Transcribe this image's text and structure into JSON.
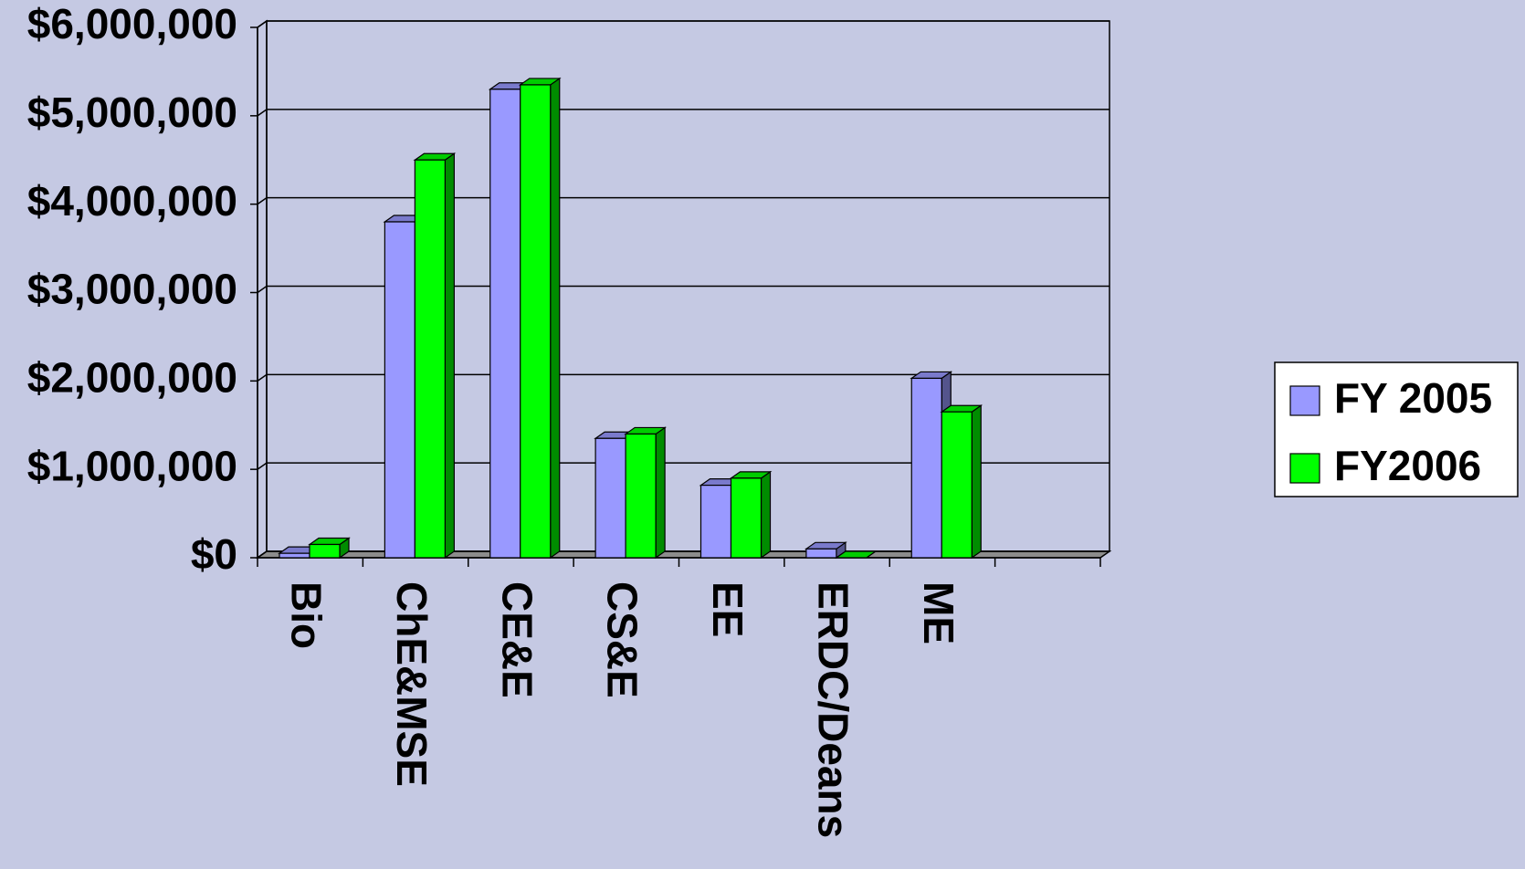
{
  "chart_data": {
    "type": "bar3d",
    "categories": [
      "Bio",
      "ChE&MSE",
      "CE&E",
      "CS&E",
      "EE",
      "ERDC/Deans",
      "ME",
      null
    ],
    "series": [
      {
        "name": "FY 2005",
        "color": "#9999ff",
        "values": [
          50000,
          3800000,
          5300000,
          1350000,
          820000,
          100000,
          2030000,
          null
        ]
      },
      {
        "name": "FY2006",
        "color": "#00ff00",
        "values": [
          150000,
          4500000,
          5350000,
          1400000,
          900000,
          0,
          1650000,
          null
        ]
      }
    ],
    "ylim": [
      0,
      6000000
    ],
    "yticks": [
      {
        "value": 0,
        "label": "$0"
      },
      {
        "value": 1000000,
        "label": "$1,000,000"
      },
      {
        "value": 2000000,
        "label": "$2,000,000"
      },
      {
        "value": 3000000,
        "label": "$3,000,000"
      },
      {
        "value": 4000000,
        "label": "$4,000,000"
      },
      {
        "value": 5000000,
        "label": "$5,000,000"
      },
      {
        "value": 6000000,
        "label": "$6,000,000"
      }
    ],
    "grid": true,
    "legend": "right"
  }
}
